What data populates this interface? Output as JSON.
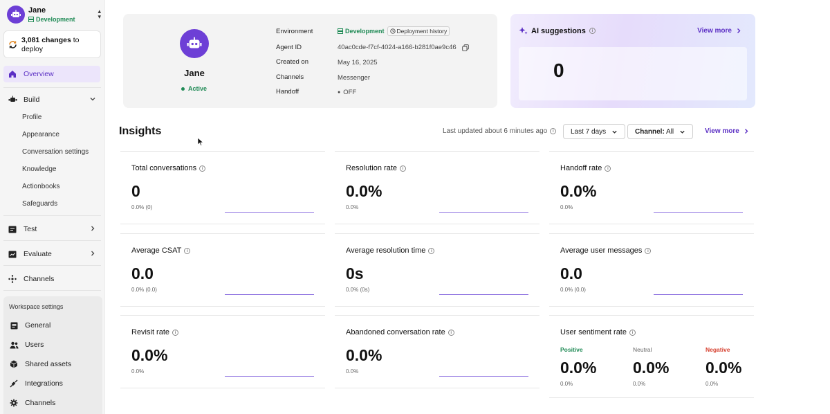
{
  "sidebar": {
    "workspace_name": "Jane",
    "workspace_env": "Development",
    "deploy_count": "3,081 changes",
    "deploy_suffix": " to deploy",
    "nav": {
      "overview": "Overview",
      "build": "Build",
      "build_items": [
        "Profile",
        "Appearance",
        "Conversation settings",
        "Knowledge",
        "Actionbooks",
        "Safeguards"
      ],
      "test": "Test",
      "evaluate": "Evaluate",
      "channels": "Channels"
    },
    "workspace_settings": {
      "title": "Workspace settings",
      "items": [
        "General",
        "Users",
        "Shared assets",
        "Integrations",
        "Channels"
      ]
    }
  },
  "agent": {
    "name": "Jane",
    "status": "Active",
    "labels": {
      "environment": "Environment",
      "agent_id": "Agent ID",
      "created_on": "Created on",
      "channels": "Channels",
      "handoff": "Handoff"
    },
    "environment": "Development",
    "deployment_history": "Deployment history",
    "agent_id": "40ac0cde-f7cf-4024-a166-b281f0ae9c46",
    "created_on": "May 16, 2025",
    "channels": "Messenger",
    "handoff": "OFF"
  },
  "ai_suggestions": {
    "title": "AI suggestions",
    "view_more": "View more",
    "count": "0"
  },
  "insights": {
    "title": "Insights",
    "last_updated": "Last updated about 6 minutes ago",
    "date_range": "Last 7 days",
    "channel_label": "Channel:",
    "channel_value": "All",
    "view_more": "View more",
    "metrics": [
      {
        "title": "Total conversations",
        "value": "0",
        "sub": "0.0% (0)"
      },
      {
        "title": "Resolution rate",
        "value": "0.0%",
        "sub": "0.0%"
      },
      {
        "title": "Handoff rate",
        "value": "0.0%",
        "sub": "0.0%"
      },
      {
        "title": "Average CSAT",
        "value": "0.0",
        "sub": "0.0% (0.0)"
      },
      {
        "title": "Average resolution time",
        "value": "0s",
        "sub": "0.0% (0s)"
      },
      {
        "title": "Average user messages",
        "value": "0.0",
        "sub": "0.0% (0.0)"
      },
      {
        "title": "Revisit rate",
        "value": "0.0%",
        "sub": "0.0%"
      },
      {
        "title": "Abandoned conversation rate",
        "value": "0.0%",
        "sub": "0.0%"
      }
    ],
    "sentiment": {
      "title": "User sentiment rate",
      "positive": {
        "label": "Positive",
        "value": "0.0%",
        "sub": "0.0%"
      },
      "neutral": {
        "label": "Neutral",
        "value": "0.0%",
        "sub": "0.0%"
      },
      "negative": {
        "label": "Negative",
        "value": "0.0%",
        "sub": "0.0%"
      }
    }
  },
  "colors": {
    "accent": "#6d3fd6",
    "active_nav_bg": "#ece5fb",
    "success": "#1f8a55",
    "negative": "#d6402f"
  }
}
